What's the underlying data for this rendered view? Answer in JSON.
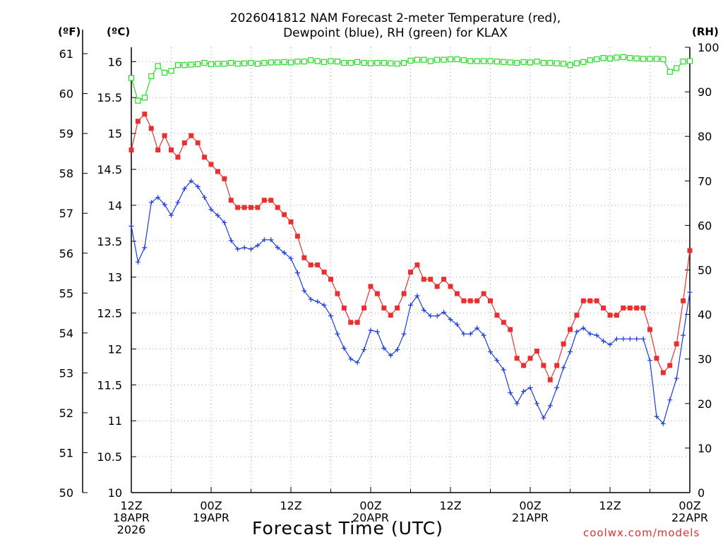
{
  "chart_data": {
    "type": "line",
    "title": "2026041812 NAM Forecast 2-meter Temperature (red),\nDewpoint (blue), RH (green) for KLAX",
    "xlabel": "Forecast Time (UTC)",
    "left_outer_unit": "(ºF)",
    "left_inner_unit": "(ºC)",
    "right_unit": "(RH)",
    "credit": "coolwx.com/models",
    "x_ticks": [
      {
        "h": 0,
        "label": [
          "12Z",
          "18APR",
          "2026"
        ]
      },
      {
        "h": 12,
        "label": [
          "00Z",
          "19APR"
        ]
      },
      {
        "h": 24,
        "label": [
          "12Z"
        ]
      },
      {
        "h": 36,
        "label": [
          "00Z",
          "20APR"
        ]
      },
      {
        "h": 48,
        "label": [
          "12Z"
        ]
      },
      {
        "h": 60,
        "label": [
          "00Z",
          "21APR"
        ]
      },
      {
        "h": 72,
        "label": [
          "12Z"
        ]
      },
      {
        "h": 84,
        "label": [
          "00Z",
          "22APR"
        ]
      }
    ],
    "xlim": [
      0,
      84
    ],
    "celsius_axis": {
      "ylim": [
        10,
        16.2
      ],
      "ticks": [
        "10",
        "10.5",
        "11",
        "11.5",
        "12",
        "12.5",
        "13",
        "13.5",
        "14",
        "14.5",
        "15",
        "15.5",
        "16"
      ]
    },
    "fahrenheit_axis": {
      "ticks": [
        "50",
        "51",
        "52",
        "53",
        "54",
        "55",
        "56",
        "57",
        "58",
        "59",
        "60",
        "61"
      ]
    },
    "rh_axis": {
      "ylim": [
        0,
        100
      ],
      "ticks": [
        "0",
        "10",
        "20",
        "30",
        "40",
        "50",
        "60",
        "70",
        "80",
        "90",
        "100"
      ]
    },
    "series": [
      {
        "name": "2-meter Temperature",
        "color": "#e83030",
        "axis": "celsius",
        "marker": "filled-square",
        "values": [
          14.77,
          15.17,
          15.27,
          15.07,
          14.77,
          14.97,
          14.77,
          14.67,
          14.87,
          14.97,
          14.87,
          14.67,
          14.57,
          14.47,
          14.37,
          14.07,
          13.97,
          13.97,
          13.97,
          13.97,
          14.07,
          14.07,
          13.97,
          13.87,
          13.77,
          13.57,
          13.27,
          13.17,
          13.17,
          13.07,
          12.97,
          12.77,
          12.57,
          12.37,
          12.37,
          12.57,
          12.87,
          12.77,
          12.57,
          12.47,
          12.57,
          12.77,
          13.07,
          13.17,
          12.97,
          12.97,
          12.87,
          12.97,
          12.87,
          12.77,
          12.67,
          12.67,
          12.67,
          12.77,
          12.67,
          12.47,
          12.37,
          12.27,
          11.87,
          11.77,
          11.87,
          11.97,
          11.77,
          11.57,
          11.77,
          12.07,
          12.27,
          12.47,
          12.67,
          12.67,
          12.67,
          12.57,
          12.47,
          12.47,
          12.57,
          12.57,
          12.57,
          12.57,
          12.27,
          11.87,
          11.67,
          11.77,
          12.07,
          12.67,
          13.37
        ]
      },
      {
        "name": "Dewpoint",
        "color": "#1a3ce0",
        "axis": "celsius",
        "marker": "plus",
        "values": [
          13.71,
          13.21,
          13.41,
          14.04,
          14.11,
          14.01,
          13.86,
          14.04,
          14.23,
          14.34,
          14.26,
          14.11,
          13.94,
          13.86,
          13.76,
          13.51,
          13.39,
          13.41,
          13.39,
          13.44,
          13.52,
          13.52,
          13.41,
          13.34,
          13.26,
          13.06,
          12.81,
          12.69,
          12.66,
          12.61,
          12.46,
          12.21,
          12.01,
          11.86,
          11.81,
          11.99,
          12.26,
          12.24,
          12.01,
          11.91,
          11.99,
          12.21,
          12.61,
          12.74,
          12.54,
          12.46,
          12.46,
          12.51,
          12.41,
          12.34,
          12.21,
          12.21,
          12.29,
          12.19,
          11.96,
          11.84,
          11.71,
          11.39,
          11.24,
          11.41,
          11.46,
          11.24,
          11.04,
          11.21,
          11.46,
          11.74,
          11.96,
          12.24,
          12.29,
          12.21,
          12.19,
          12.11,
          12.06,
          12.14,
          12.14,
          12.14,
          12.14,
          12.14,
          11.84,
          11.06,
          10.96,
          11.29,
          11.59,
          12.19,
          12.79
        ]
      },
      {
        "name": "RH",
        "color": "#22dd22",
        "axis": "rh",
        "marker": "open-square",
        "values": [
          93.1,
          88.0,
          88.7,
          93.5,
          95.8,
          94.3,
          94.7,
          96.0,
          96.0,
          96.1,
          96.2,
          96.5,
          96.2,
          96.3,
          96.3,
          96.5,
          96.3,
          96.4,
          96.5,
          96.3,
          96.5,
          96.6,
          96.6,
          96.7,
          96.6,
          96.8,
          96.8,
          97.1,
          96.9,
          96.7,
          96.9,
          96.8,
          96.5,
          96.5,
          96.7,
          96.5,
          96.4,
          96.5,
          96.5,
          96.4,
          96.3,
          96.5,
          97.0,
          97.2,
          97.2,
          96.9,
          97.2,
          97.2,
          97.3,
          97.3,
          97.1,
          96.9,
          96.9,
          96.9,
          96.9,
          96.8,
          96.7,
          96.6,
          96.5,
          96.7,
          96.6,
          96.8,
          96.5,
          96.5,
          96.4,
          96.3,
          96.0,
          96.4,
          96.7,
          97.1,
          97.3,
          97.6,
          97.5,
          97.7,
          97.8,
          97.6,
          97.5,
          97.4,
          97.4,
          97.4,
          97.3,
          94.5,
          95.3,
          96.8,
          96.9
        ]
      }
    ]
  }
}
